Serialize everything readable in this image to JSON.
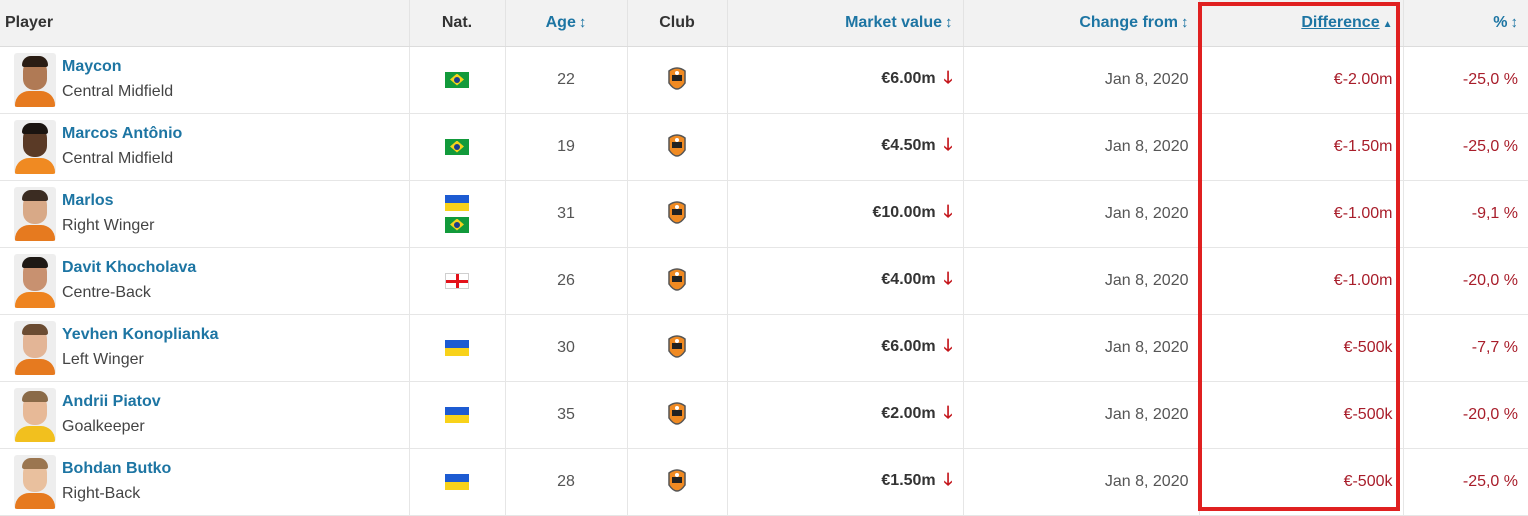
{
  "header": {
    "player": "Player",
    "nat": "Nat.",
    "age": "Age",
    "club": "Club",
    "market_value": "Market value",
    "change_from": "Change from",
    "difference": "Difference",
    "percent": "%",
    "sort_icon": "↕",
    "sort_active_icon": "▲"
  },
  "rows": [
    {
      "name": "Maycon",
      "position": "Central Midfield",
      "nat": [
        "brazil-flag"
      ],
      "age": "22",
      "club_icon": "shakhtar-logo",
      "market_value": "€6.00m",
      "change_from": "Jan 8, 2020",
      "difference": "€-2.00m",
      "percent": "-25,0 %"
    },
    {
      "name": "Marcos Antônio",
      "position": "Central Midfield",
      "nat": [
        "brazil-flag"
      ],
      "age": "19",
      "club_icon": "shakhtar-logo",
      "market_value": "€4.50m",
      "change_from": "Jan 8, 2020",
      "difference": "€-1.50m",
      "percent": "-25,0 %"
    },
    {
      "name": "Marlos",
      "position": "Right Winger",
      "nat": [
        "ukraine-flag",
        "brazil-flag"
      ],
      "age": "31",
      "club_icon": "shakhtar-logo",
      "market_value": "€10.00m",
      "change_from": "Jan 8, 2020",
      "difference": "€-1.00m",
      "percent": "-9,1 %"
    },
    {
      "name": "Davit Khocholava",
      "position": "Centre-Back",
      "nat": [
        "georgia-flag"
      ],
      "age": "26",
      "club_icon": "shakhtar-logo",
      "market_value": "€4.00m",
      "change_from": "Jan 8, 2020",
      "difference": "€-1.00m",
      "percent": "-20,0 %"
    },
    {
      "name": "Yevhen Konoplianka",
      "position": "Left Winger",
      "nat": [
        "ukraine-flag"
      ],
      "age": "30",
      "club_icon": "shakhtar-logo",
      "market_value": "€6.00m",
      "change_from": "Jan 8, 2020",
      "difference": "€-500k",
      "percent": "-7,7 %"
    },
    {
      "name": "Andrii Piatov",
      "position": "Goalkeeper",
      "nat": [
        "ukraine-flag"
      ],
      "age": "35",
      "club_icon": "shakhtar-logo",
      "market_value": "€2.00m",
      "change_from": "Jan 8, 2020",
      "difference": "€-500k",
      "percent": "-20,0 %"
    },
    {
      "name": "Bohdan Butko",
      "position": "Right-Back",
      "nat": [
        "ukraine-flag"
      ],
      "age": "28",
      "club_icon": "shakhtar-logo",
      "market_value": "€1.50m",
      "change_from": "Jan 8, 2020",
      "difference": "€-500k",
      "percent": "-25,0 %"
    }
  ],
  "trend_icon": "down-arrow-icon",
  "colors": {
    "link": "#1d75a3",
    "negative": "#a81d2a",
    "arrow": "#c4161c",
    "highlight": "#e02020"
  }
}
